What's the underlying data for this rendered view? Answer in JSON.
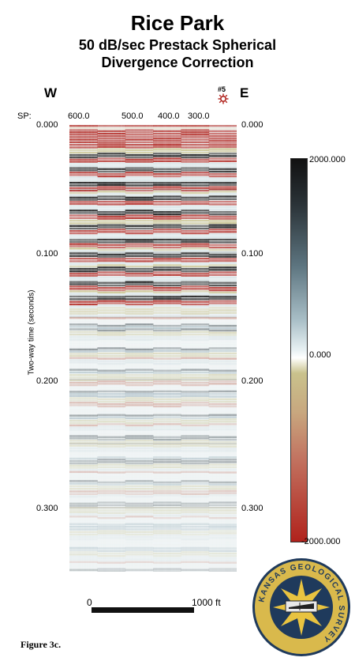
{
  "header": {
    "title": "Rice Park",
    "subtitle_line1": "50 dB/sec Prestack Spherical",
    "subtitle_line2": "Divergence Correction"
  },
  "section": {
    "west_label": "W",
    "east_label": "E",
    "marker_label": "#5",
    "sp_label": "SP:",
    "sp_ticks": [
      "600.0",
      "500.0",
      "400.0",
      "300.0"
    ],
    "time_ticks_left": [
      "0.000",
      "0.100",
      "0.200",
      "0.300"
    ],
    "time_ticks_right": [
      "0.000",
      "0.100",
      "0.200",
      "0.300"
    ],
    "y_axis_label": "Two-way time (seconds)"
  },
  "colorbar": {
    "max_label": "2000.000",
    "mid_label": "0.000",
    "min_label": "-2000.000",
    "colors": {
      "positive": "#111111",
      "zero": "#ffffff",
      "negative": "#b0221c",
      "beige": "#c8bf8a",
      "blue": "#7f9aa8"
    }
  },
  "scale": {
    "start_label": "0",
    "end_label": "1000 ft"
  },
  "seal": {
    "text": "KANSAS GEOLOGICAL SURVEY"
  },
  "figure_caption": "Figure 3c."
}
